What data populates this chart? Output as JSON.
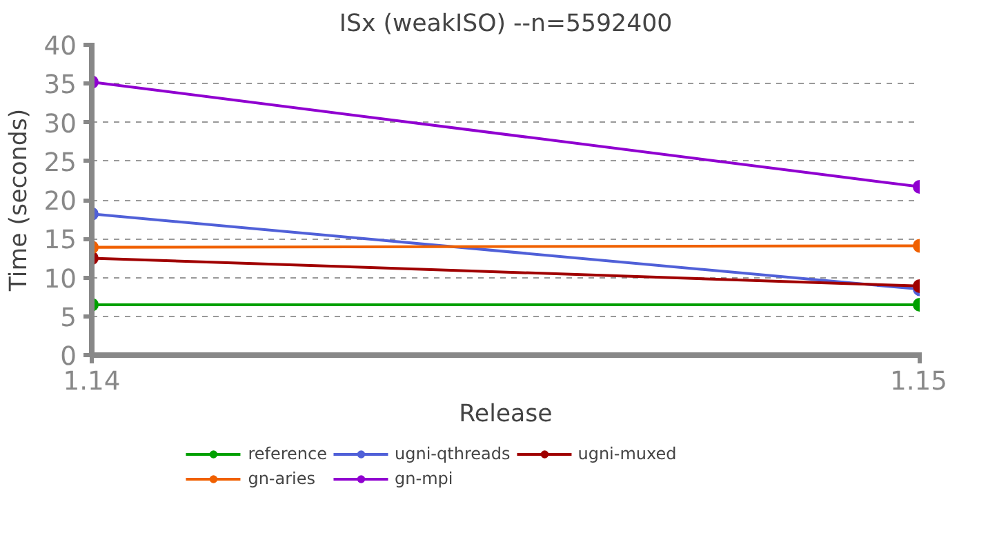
{
  "chart_data": {
    "type": "line",
    "title": "ISx (weakISO) --n=5592400",
    "xlabel": "Release",
    "ylabel": "Time (seconds)",
    "x": [
      1.14,
      1.15
    ],
    "xlim": [
      1.14,
      1.15
    ],
    "xticks": [
      1.14,
      1.15
    ],
    "ylim": [
      0,
      40
    ],
    "yticks": [
      0,
      5,
      10,
      15,
      20,
      25,
      30,
      35,
      40
    ],
    "grid": "y",
    "legend": "bottom",
    "marker": "circle",
    "line_style": "solid",
    "series": [
      {
        "name": "reference",
        "color": "#00a000",
        "values": [
          6.5,
          6.5
        ]
      },
      {
        "name": "ugni-qthreads",
        "color": "#5060d8",
        "values": [
          18.2,
          8.5
        ]
      },
      {
        "name": "ugni-muxed",
        "color": "#a00000",
        "values": [
          12.5,
          8.9
        ]
      },
      {
        "name": "gn-aries",
        "color": "#f06000",
        "values": [
          13.9,
          14.1
        ]
      },
      {
        "name": "gn-mpi",
        "color": "#9000d0",
        "values": [
          35.2,
          21.7
        ]
      }
    ]
  }
}
